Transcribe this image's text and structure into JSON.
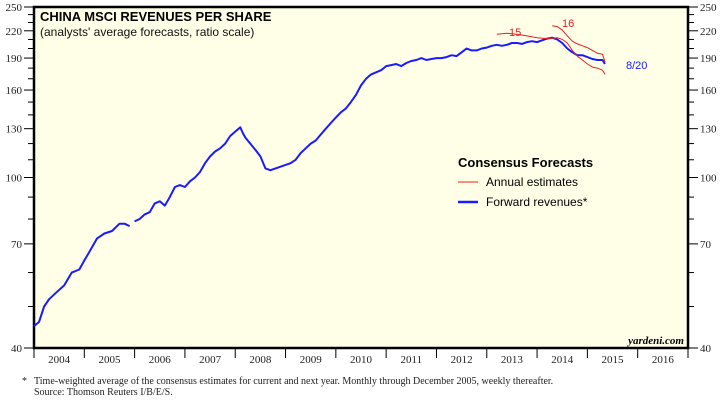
{
  "chart_data": {
    "type": "line",
    "title": "CHINA MSCI REVENUES PER SHARE",
    "subtitle": "(analysts' average forecasts, ratio scale)",
    "xlabel": "",
    "ylabel": "",
    "y_scale": "log",
    "ylim": [
      40,
      250
    ],
    "xlim": [
      2004,
      2017
    ],
    "y_ticks": [
      40,
      70,
      100,
      130,
      160,
      190,
      220,
      250
    ],
    "y_minor_ticks": [
      50,
      60,
      80,
      90,
      110,
      120,
      140,
      150,
      170,
      180,
      200,
      210,
      230,
      240
    ],
    "x_tick_labels": [
      "2004",
      "2005",
      "2006",
      "2007",
      "2008",
      "2009",
      "2010",
      "2011",
      "2012",
      "2013",
      "2014",
      "2015",
      "2016"
    ],
    "grid": false,
    "legend": {
      "title": "Consensus Forecasts",
      "placement": "center-right",
      "entries": [
        {
          "label": "Annual estimates",
          "color": "#e52020"
        },
        {
          "label": "Forward revenues*",
          "color": "#1a1aff"
        }
      ]
    },
    "series": [
      {
        "name": "Forward revenues*",
        "color": "#1a1aff",
        "segments": [
          {
            "x": [
              2004.0,
              2004.1,
              2004.2,
              2004.3,
              2004.45,
              2004.6,
              2004.75,
              2004.9,
              2005.0,
              2005.1,
              2005.25,
              2005.4,
              2005.55,
              2005.7,
              2005.8,
              2005.9
            ],
            "y": [
              45,
              46,
              50,
              52,
              54,
              56,
              60,
              61,
              64,
              67,
              72,
              74,
              75,
              78,
              78,
              77
            ]
          },
          {
            "x": [
              2006.0,
              2006.1,
              2006.2,
              2006.3,
              2006.4,
              2006.5,
              2006.6,
              2006.7,
              2006.8,
              2006.9,
              2007.0,
              2007.1,
              2007.2,
              2007.3,
              2007.4,
              2007.5,
              2007.6,
              2007.7,
              2007.8,
              2007.9,
              2008.0,
              2008.1,
              2008.15,
              2008.2,
              2008.3,
              2008.4,
              2008.5,
              2008.6,
              2008.7,
              2008.8,
              2008.9,
              2009.0,
              2009.1,
              2009.2,
              2009.3,
              2009.4,
              2009.5,
              2009.6,
              2009.7,
              2009.8,
              2009.9,
              2010.0,
              2010.1,
              2010.2,
              2010.3,
              2010.4,
              2010.5,
              2010.6,
              2010.7,
              2010.8,
              2010.9,
              2011.0,
              2011.1,
              2011.2,
              2011.3,
              2011.4,
              2011.5,
              2011.6,
              2011.7,
              2011.8,
              2011.9,
              2012.0,
              2012.1,
              2012.2,
              2012.3,
              2012.4,
              2012.5,
              2012.6,
              2012.7,
              2012.8,
              2012.9,
              2013.0,
              2013.1,
              2013.2,
              2013.3,
              2013.4,
              2013.5,
              2013.6,
              2013.7,
              2013.8,
              2013.9,
              2014.0,
              2014.1,
              2014.2,
              2014.3,
              2014.4,
              2014.5,
              2014.6,
              2014.7,
              2014.8,
              2014.9,
              2015.0,
              2015.1,
              2015.2,
              2015.3,
              2015.35
            ],
            "y": [
              79,
              80,
              82,
              83,
              87,
              88,
              86,
              90,
              95,
              96,
              95,
              98,
              100,
              103,
              108,
              112,
              115,
              117,
              120,
              125,
              128,
              131,
              127,
              124,
              120,
              116,
              112,
              105,
              104,
              105,
              106,
              107,
              108,
              110,
              114,
              117,
              120,
              122,
              126,
              130,
              134,
              138,
              142,
              145,
              150,
              156,
              164,
              170,
              174,
              176,
              178,
              182,
              183,
              184,
              182,
              185,
              187,
              188,
              190,
              188,
              189,
              190,
              190,
              191,
              193,
              192,
              196,
              200,
              198,
              198,
              200,
              201,
              203,
              204,
              203,
              204,
              206,
              206,
              205,
              207,
              208,
              207,
              209,
              211,
              212,
              210,
              206,
              200,
              196,
              193,
              193,
              191,
              189,
              188,
              188,
              184
            ]
          }
        ]
      },
      {
        "name": "Annual estimates 2015",
        "label": "15",
        "color": "#e52020",
        "x": [
          2013.2,
          2013.4,
          2013.6,
          2013.8,
          2014.0,
          2014.2,
          2014.4,
          2014.5,
          2014.6,
          2014.7,
          2014.8,
          2014.9,
          2015.0,
          2015.1,
          2015.2,
          2015.3,
          2015.35
        ],
        "y": [
          216,
          217,
          216,
          214,
          212,
          211,
          212,
          210,
          206,
          198,
          192,
          188,
          184,
          181,
          180,
          178,
          174
        ]
      },
      {
        "name": "Annual estimates 2016",
        "label": "16",
        "color": "#e52020",
        "x": [
          2014.3,
          2014.4,
          2014.5,
          2014.6,
          2014.7,
          2014.8,
          2014.9,
          2015.0,
          2015.1,
          2015.2,
          2015.3,
          2015.35
        ],
        "y": [
          226,
          225,
          221,
          214,
          208,
          205,
          203,
          201,
          198,
          195,
          194,
          186
        ]
      }
    ],
    "annotations": [
      {
        "text": "15",
        "color": "#e52020"
      },
      {
        "text": "16",
        "color": "#e52020"
      },
      {
        "text": "8/20",
        "color": "#1a1aff"
      }
    ]
  },
  "labels": {
    "brand": "yardeni.com",
    "annot_15": "15",
    "annot_16": "16",
    "annot_date": "8/20"
  },
  "footnote": {
    "star": "*",
    "line1": "Time-weighted average of the consensus estimates for current and next year. Monthly through December 2005, weekly thereafter.",
    "line2": "Source: Thomson Reuters I/B/E/S."
  },
  "colors": {
    "plot_bg": "#ffffe8",
    "frame": "#000000",
    "forward": "#1a1aff",
    "annual": "#e52020"
  }
}
